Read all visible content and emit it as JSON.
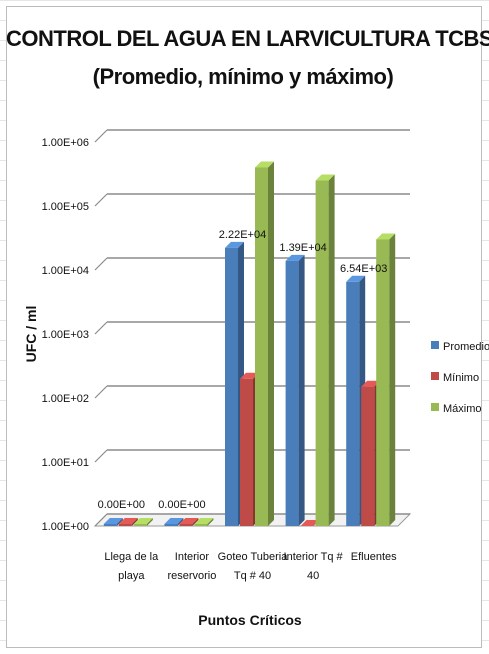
{
  "colors": {
    "promedio": "#4a7ebb",
    "minimo": "#be4b48",
    "maximo": "#98b954",
    "gridline": "#8c8c8c"
  },
  "chart_data": {
    "type": "bar",
    "title": "CONTROL DEL AGUA EN LARVICULTURA TCBS",
    "subtitle": "(Promedio, mínimo y máximo)",
    "xlabel": "Puntos Críticos",
    "ylabel": "UFC / ml",
    "y_scale": "log",
    "ylim": [
      1,
      1000000
    ],
    "y_ticks": [
      {
        "value": 1,
        "label": "1.00E+00"
      },
      {
        "value": 10,
        "label": "1.00E+01"
      },
      {
        "value": 100,
        "label": "1.00E+02"
      },
      {
        "value": 1000,
        "label": "1.00E+03"
      },
      {
        "value": 10000,
        "label": "1.00E+04"
      },
      {
        "value": 100000,
        "label": "1.00E+05"
      },
      {
        "value": 1000000,
        "label": "1.00E+06"
      }
    ],
    "categories": [
      [
        "Llega de la",
        "playa"
      ],
      [
        "Interior",
        "reservorio"
      ],
      [
        "Goteo Tuberia",
        "Tq # 40"
      ],
      [
        "Interior Tq #",
        "40"
      ],
      [
        "Efluentes"
      ]
    ],
    "series": [
      {
        "name": "Promedio",
        "values": [
          0,
          0,
          22200,
          13900,
          6540
        ]
      },
      {
        "name": "Mínimo",
        "values": [
          0,
          0,
          200,
          1,
          150
        ]
      },
      {
        "name": "Máximo",
        "values": [
          0,
          0,
          400000,
          250000,
          30000
        ]
      }
    ],
    "data_labels": [
      "0.00E+00",
      "0.00E+00",
      "2.22E+04",
      "1.39E+04",
      "6.54E+03"
    ],
    "legend": "right",
    "grid": true
  }
}
